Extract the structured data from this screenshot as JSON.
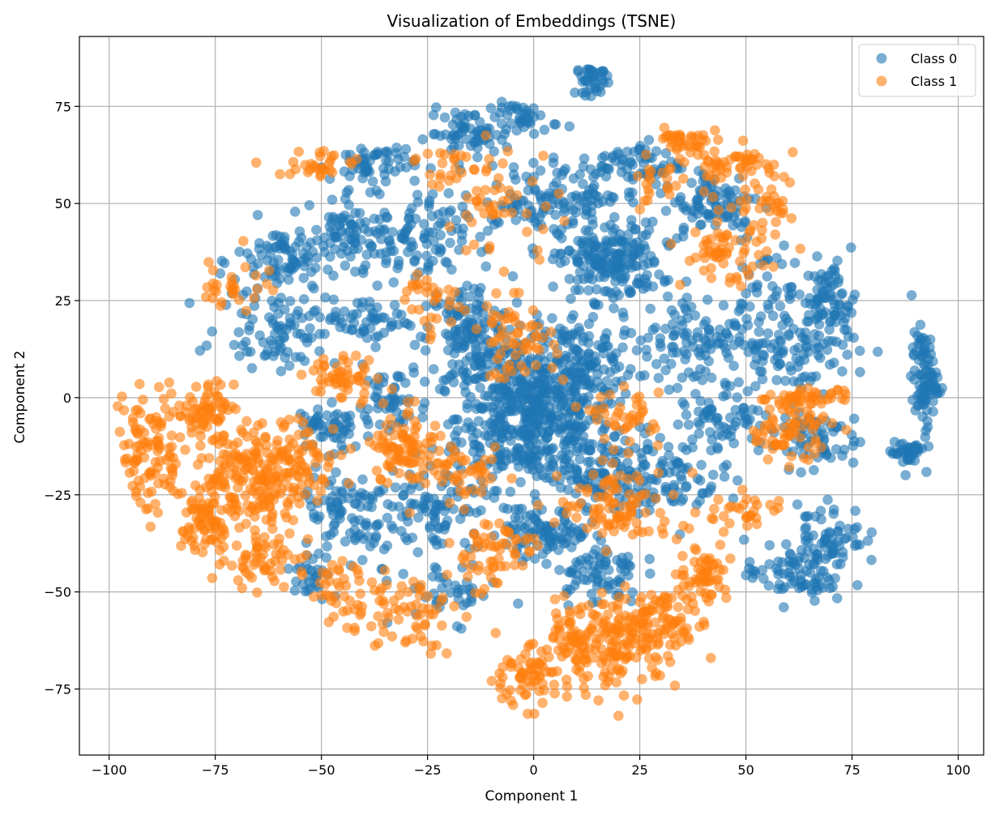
{
  "chart_data": {
    "type": "scatter",
    "title": "Visualization of Embeddings (TSNE)",
    "xlabel": "Component 1",
    "ylabel": "Component 2",
    "xlim": [
      -107,
      106
    ],
    "ylim": [
      -92,
      93
    ],
    "xticks": [
      -100,
      -75,
      -50,
      -25,
      0,
      25,
      50,
      75,
      100
    ],
    "yticks": [
      -75,
      -50,
      -25,
      0,
      25,
      50,
      75
    ],
    "grid": true,
    "legend_position": "top-right",
    "marker_alpha": 0.6,
    "series": [
      {
        "name": "Class 0",
        "color": "#1f77b4",
        "clusters": [
          {
            "cx": 0,
            "cy": -5,
            "sx": 9,
            "sy": 9,
            "n": 520
          },
          {
            "cx": -15,
            "cy": 15,
            "sx": 5,
            "sy": 8,
            "n": 150
          },
          {
            "cx": 10,
            "cy": 10,
            "sx": 7,
            "sy": 6,
            "n": 120
          },
          {
            "cx": 18,
            "cy": 35,
            "sx": 6,
            "sy": 5,
            "n": 200
          },
          {
            "cx": -15,
            "cy": 68,
            "sx": 5,
            "sy": 3,
            "n": 60
          },
          {
            "cx": -2,
            "cy": 72,
            "sx": 4,
            "sy": 2,
            "n": 40
          },
          {
            "cx": 14,
            "cy": 82,
            "sx": 2,
            "sy": 2,
            "n": 40
          },
          {
            "cx": -38,
            "cy": 60,
            "sx": 5,
            "sy": 3,
            "n": 60
          },
          {
            "cx": -42,
            "cy": 42,
            "sx": 5,
            "sy": 4,
            "n": 70
          },
          {
            "cx": -58,
            "cy": 35,
            "sx": 6,
            "sy": 5,
            "n": 90
          },
          {
            "cx": -60,
            "cy": 18,
            "sx": 7,
            "sy": 5,
            "n": 90
          },
          {
            "cx": -38,
            "cy": 20,
            "sx": 6,
            "sy": 3,
            "n": 50
          },
          {
            "cx": -28,
            "cy": 40,
            "sx": 6,
            "sy": 6,
            "n": 90
          },
          {
            "cx": 10,
            "cy": 52,
            "sx": 6,
            "sy": 4,
            "n": 60
          },
          {
            "cx": 25,
            "cy": 60,
            "sx": 5,
            "sy": 3,
            "n": 60
          },
          {
            "cx": 42,
            "cy": 50,
            "sx": 6,
            "sy": 5,
            "n": 90
          },
          {
            "cx": 40,
            "cy": 15,
            "sx": 8,
            "sy": 6,
            "n": 110
          },
          {
            "cx": 60,
            "cy": 12,
            "sx": 8,
            "sy": 5,
            "n": 90
          },
          {
            "cx": 70,
            "cy": 25,
            "sx": 3,
            "sy": 5,
            "n": 70
          },
          {
            "cx": 92,
            "cy": 5,
            "sx": 1.5,
            "sy": 6,
            "n": 90
          },
          {
            "cx": 88,
            "cy": -14,
            "sx": 2,
            "sy": 2,
            "n": 40
          },
          {
            "cx": 65,
            "cy": -10,
            "sx": 6,
            "sy": 4,
            "n": 70
          },
          {
            "cx": 62,
            "cy": -45,
            "sx": 6,
            "sy": 4,
            "n": 90
          },
          {
            "cx": 70,
            "cy": -35,
            "sx": 4,
            "sy": 4,
            "n": 50
          },
          {
            "cx": 45,
            "cy": -5,
            "sx": 5,
            "sy": 4,
            "n": 60
          },
          {
            "cx": 30,
            "cy": -20,
            "sx": 7,
            "sy": 5,
            "n": 100
          },
          {
            "cx": 15,
            "cy": -45,
            "sx": 5,
            "sy": 4,
            "n": 70
          },
          {
            "cx": 3,
            "cy": -35,
            "sx": 5,
            "sy": 3,
            "n": 90
          },
          {
            "cx": -25,
            "cy": -30,
            "sx": 8,
            "sy": 6,
            "n": 110
          },
          {
            "cx": -45,
            "cy": -30,
            "sx": 5,
            "sy": 6,
            "n": 70
          },
          {
            "cx": -48,
            "cy": -8,
            "sx": 4,
            "sy": 3,
            "n": 50
          },
          {
            "cx": -35,
            "cy": 0,
            "sx": 5,
            "sy": 4,
            "n": 50
          },
          {
            "cx": -52,
            "cy": -45,
            "sx": 3,
            "sy": 3,
            "n": 30
          },
          {
            "cx": 55,
            "cy": 28,
            "sx": 5,
            "sy": 4,
            "n": 40
          },
          {
            "cx": 0,
            "cy": 50,
            "sx": 6,
            "sy": 5,
            "n": 60
          },
          {
            "cx": -20,
            "cy": -50,
            "sx": 6,
            "sy": 4,
            "n": 40
          },
          {
            "cx": 15,
            "cy": -20,
            "sx": 5,
            "sy": 5,
            "n": 70
          }
        ]
      },
      {
        "name": "Class 1",
        "color": "#ff7f0e",
        "clusters": [
          {
            "cx": -90,
            "cy": -15,
            "sx": 4,
            "sy": 8,
            "n": 100
          },
          {
            "cx": -80,
            "cy": -5,
            "sx": 5,
            "sy": 3,
            "n": 50
          },
          {
            "cx": -77,
            "cy": -32,
            "sx": 3,
            "sy": 6,
            "n": 80
          },
          {
            "cx": -70,
            "cy": -18,
            "sx": 4,
            "sy": 6,
            "n": 90
          },
          {
            "cx": -62,
            "cy": -25,
            "sx": 4,
            "sy": 5,
            "n": 80
          },
          {
            "cx": -55,
            "cy": -15,
            "sx": 5,
            "sy": 5,
            "n": 70
          },
          {
            "cx": -62,
            "cy": -42,
            "sx": 5,
            "sy": 3,
            "n": 50
          },
          {
            "cx": -45,
            "cy": -50,
            "sx": 4,
            "sy": 4,
            "n": 40
          },
          {
            "cx": -30,
            "cy": -12,
            "sx": 4,
            "sy": 6,
            "n": 90
          },
          {
            "cx": -45,
            "cy": 5,
            "sx": 4,
            "sy": 3,
            "n": 50
          },
          {
            "cx": -30,
            "cy": -55,
            "sx": 6,
            "sy": 5,
            "n": 60
          },
          {
            "cx": -10,
            "cy": -40,
            "sx": 5,
            "sy": 5,
            "n": 60
          },
          {
            "cx": -3,
            "cy": -72,
            "sx": 4,
            "sy": 4,
            "n": 60
          },
          {
            "cx": 10,
            "cy": -65,
            "sx": 5,
            "sy": 5,
            "n": 90
          },
          {
            "cx": 22,
            "cy": -62,
            "sx": 6,
            "sy": 6,
            "n": 100
          },
          {
            "cx": 30,
            "cy": -58,
            "sx": 6,
            "sy": 5,
            "n": 80
          },
          {
            "cx": 40,
            "cy": -45,
            "sx": 3,
            "sy": 4,
            "n": 60
          },
          {
            "cx": 20,
            "cy": -28,
            "sx": 7,
            "sy": 5,
            "n": 90
          },
          {
            "cx": 50,
            "cy": -30,
            "sx": 5,
            "sy": 3,
            "n": 30
          },
          {
            "cx": 22,
            "cy": -5,
            "sx": 4,
            "sy": 3,
            "n": 40
          },
          {
            "cx": 60,
            "cy": -8,
            "sx": 5,
            "sy": 4,
            "n": 70
          },
          {
            "cx": 65,
            "cy": 0,
            "sx": 5,
            "sy": 1,
            "n": 40
          },
          {
            "cx": 45,
            "cy": 37,
            "sx": 5,
            "sy": 4,
            "n": 60
          },
          {
            "cx": 55,
            "cy": 50,
            "sx": 5,
            "sy": 4,
            "n": 40
          },
          {
            "cx": 47,
            "cy": 60,
            "sx": 5,
            "sy": 2,
            "n": 40
          },
          {
            "cx": 35,
            "cy": 66,
            "sx": 4,
            "sy": 2,
            "n": 40
          },
          {
            "cx": 30,
            "cy": 54,
            "sx": 3,
            "sy": 3,
            "n": 20
          },
          {
            "cx": -5,
            "cy": 15,
            "sx": 5,
            "sy": 5,
            "n": 60
          },
          {
            "cx": -8,
            "cy": 50,
            "sx": 7,
            "sy": 8,
            "n": 50
          },
          {
            "cx": -20,
            "cy": 60,
            "sx": 4,
            "sy": 3,
            "n": 20
          },
          {
            "cx": -50,
            "cy": 60,
            "sx": 5,
            "sy": 2,
            "n": 30
          },
          {
            "cx": -70,
            "cy": 30,
            "sx": 4,
            "sy": 4,
            "n": 30
          },
          {
            "cx": -25,
            "cy": 25,
            "sx": 4,
            "sy": 5,
            "n": 30
          },
          {
            "cx": -75,
            "cy": 0,
            "sx": 3,
            "sy": 2,
            "n": 20
          },
          {
            "cx": -15,
            "cy": -20,
            "sx": 4,
            "sy": 3,
            "n": 40
          }
        ]
      }
    ]
  }
}
